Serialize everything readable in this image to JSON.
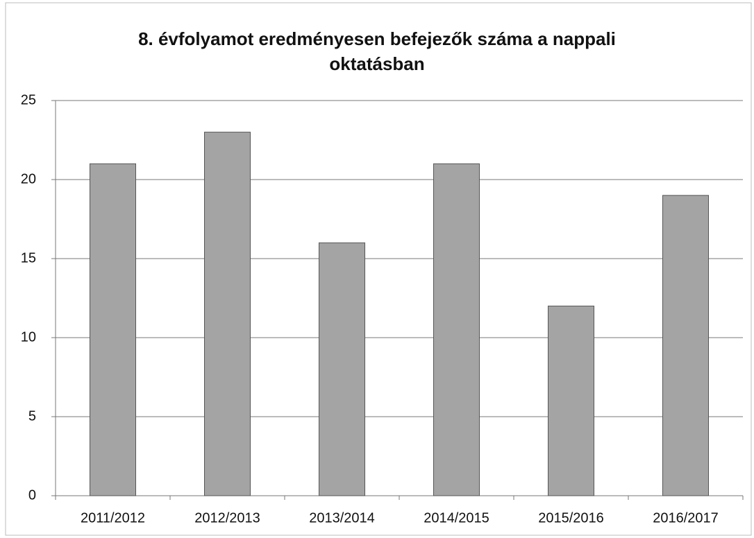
{
  "chart_data": {
    "type": "bar",
    "title": "8. évfolyamot eredményesen befejezők száma  a nappali oktatásban",
    "categories": [
      "2011/2012",
      "2012/2013",
      "2013/2014",
      "2014/2015",
      "2015/2016",
      "2016/2017"
    ],
    "values": [
      21,
      23,
      16,
      21,
      12,
      19
    ],
    "color": "#a4a4a4",
    "ylim": [
      0,
      25
    ],
    "yticks": [
      0,
      5,
      10,
      15,
      20,
      25
    ],
    "grid": true
  }
}
